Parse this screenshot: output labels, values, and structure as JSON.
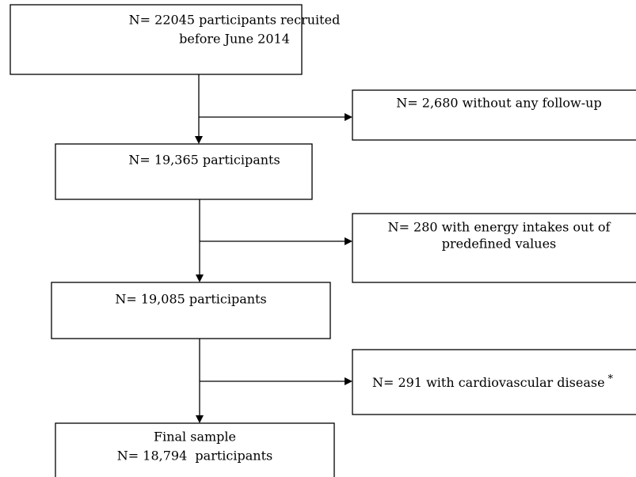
{
  "nodes": [
    {
      "lines": [
        "N= 22045 participants recruited",
        "before June 2014"
      ]
    },
    {
      "lines": [
        "N= 2,680 without any follow-up"
      ]
    },
    {
      "lines": [
        "N= 19,365 participants"
      ]
    },
    {
      "lines": [
        "N= 280 with energy intakes out of",
        "predefined values"
      ]
    },
    {
      "lines": [
        "N= 19,085 participants"
      ]
    },
    {
      "lines": [
        "N= 291 with cardiovascular disease"
      ],
      "note": "*"
    },
    {
      "lines": [
        "Final sample",
        "N= 18,794  participants"
      ]
    }
  ]
}
